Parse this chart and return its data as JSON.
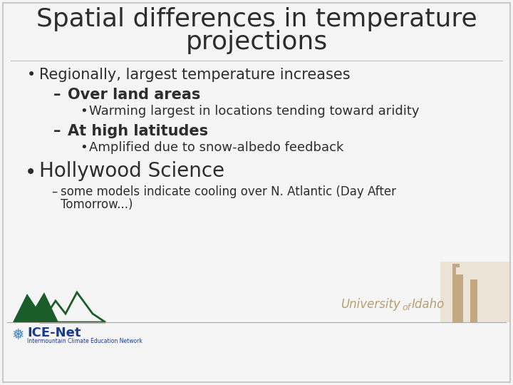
{
  "title_line1": "Spatial differences in temperature",
  "title_line2": "projections",
  "title_fontsize": 26,
  "title_color": "#2d2d2d",
  "slide_bg": "#f5f5f5",
  "bullet1": "Regionally, largest temperature increases",
  "bullet1_fontsize": 15,
  "dash1": "Over land areas",
  "dash1_fontsize": 15,
  "sub_bullet1": "Warming largest in locations tending toward aridity",
  "sub_bullet1_fontsize": 13,
  "dash2": "At high latitudes",
  "dash2_fontsize": 15,
  "sub_bullet2": "Amplified due to snow-albedo feedback",
  "sub_bullet2_fontsize": 13,
  "bullet2": "Hollywood Science",
  "bullet2_fontsize": 20,
  "dash3_line1": "some models indicate cooling over N. Atlantic (Day After",
  "dash3_line2": "Tomorrow...)",
  "dash3_fontsize": 12,
  "text_color": "#2d2d2d",
  "univ_color": "#b5a06e",
  "border_color": "#c0c0c0",
  "separator_color": "#aaaaaa",
  "mountain_color": "#1a5c2a",
  "icenet_blue": "#1a3a8c",
  "snowflake_color": "#4488cc"
}
